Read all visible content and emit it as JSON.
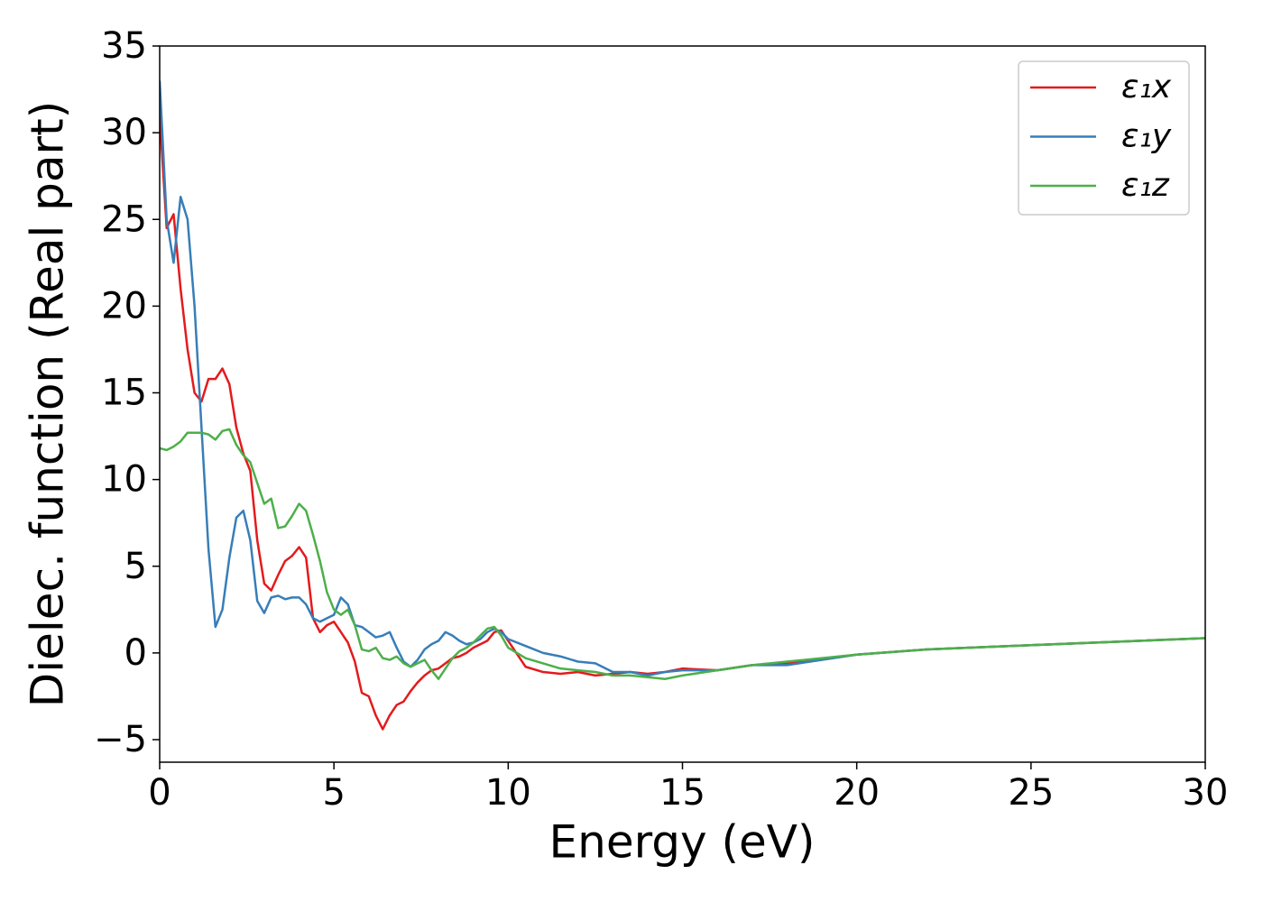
{
  "chart_data": {
    "type": "line",
    "xlabel": "Energy (eV)",
    "ylabel": "Dielec. function (Real part)",
    "x": [
      0,
      0.2,
      0.4,
      0.6,
      0.8,
      1.0,
      1.2,
      1.4,
      1.6,
      1.8,
      2.0,
      2.2,
      2.4,
      2.6,
      2.8,
      3.0,
      3.2,
      3.4,
      3.6,
      3.8,
      4.0,
      4.2,
      4.4,
      4.6,
      4.8,
      5.0,
      5.2,
      5.4,
      5.6,
      5.8,
      6.0,
      6.2,
      6.4,
      6.6,
      6.8,
      7.0,
      7.2,
      7.4,
      7.6,
      7.8,
      8.0,
      8.2,
      8.4,
      8.6,
      8.8,
      9.0,
      9.2,
      9.4,
      9.6,
      9.8,
      10.0,
      10.5,
      11,
      11.5,
      12,
      12.5,
      13,
      13.5,
      14,
      14.5,
      15,
      16,
      17,
      18,
      20,
      22,
      25,
      30
    ],
    "series": [
      {
        "name": "ε₁x",
        "color": "#e41a1c",
        "values": [
          31,
          24.5,
          25.3,
          21,
          17.5,
          15,
          14.5,
          15.8,
          15.8,
          16.4,
          15.5,
          13,
          11.5,
          10.5,
          6.5,
          4,
          3.6,
          4.5,
          5.3,
          5.6,
          6.1,
          5.5,
          2,
          1.2,
          1.6,
          1.8,
          1.2,
          0.6,
          -0.5,
          -2.3,
          -2.5,
          -3.6,
          -4.4,
          -3.6,
          -3.0,
          -2.8,
          -2.2,
          -1.7,
          -1.3,
          -1,
          -0.9,
          -0.6,
          -0.3,
          -0.2,
          0,
          0.3,
          0.5,
          0.7,
          1.2,
          1.3,
          0.7,
          -0.8,
          -1.1,
          -1.2,
          -1.1,
          -1.3,
          -1.2,
          -1.1,
          -1.2,
          -1.1,
          -0.9,
          -1.0,
          -0.7,
          -0.6,
          -0.1,
          0.2,
          0.45,
          0.85
        ]
      },
      {
        "name": "ε₁y",
        "color": "#377eb8",
        "values": [
          33,
          25,
          22.5,
          26.3,
          25,
          20,
          13,
          6,
          1.5,
          2.5,
          5.5,
          7.8,
          8.2,
          6.5,
          3,
          2.3,
          3.2,
          3.3,
          3.1,
          3.2,
          3.2,
          2.8,
          2,
          1.8,
          2,
          2.2,
          3.2,
          2.8,
          1.6,
          1.5,
          1.2,
          0.9,
          1.0,
          1.2,
          0.3,
          -0.5,
          -0.8,
          -0.4,
          0.2,
          0.5,
          0.7,
          1.2,
          1.0,
          0.7,
          0.5,
          0.6,
          0.8,
          1.2,
          1.4,
          1.2,
          0.8,
          0.4,
          0,
          -0.2,
          -0.5,
          -0.6,
          -1.1,
          -1.1,
          -1.3,
          -1.1,
          -1.0,
          -1.0,
          -0.7,
          -0.7,
          -0.1,
          0.2,
          0.45,
          0.85
        ]
      },
      {
        "name": "ε₁z",
        "color": "#4daf4a",
        "values": [
          11.8,
          11.7,
          11.9,
          12.2,
          12.7,
          12.7,
          12.7,
          12.6,
          12.3,
          12.8,
          12.9,
          12,
          11.4,
          11,
          9.8,
          8.6,
          8.9,
          7.2,
          7.3,
          7.9,
          8.6,
          8.2,
          6.8,
          5.3,
          3.5,
          2.5,
          2.2,
          2.5,
          1.6,
          0.2,
          0.1,
          0.3,
          -0.3,
          -0.4,
          -0.2,
          -0.6,
          -0.8,
          -0.6,
          -0.4,
          -1.0,
          -1.5,
          -0.9,
          -0.3,
          0.1,
          0.3,
          0.6,
          1.0,
          1.4,
          1.5,
          1.0,
          0.3,
          -0.3,
          -0.6,
          -0.9,
          -1.0,
          -1.1,
          -1.3,
          -1.3,
          -1.4,
          -1.5,
          -1.3,
          -1.0,
          -0.7,
          -0.5,
          -0.1,
          0.2,
          0.45,
          0.85
        ]
      }
    ],
    "xlim": [
      0,
      30
    ],
    "xticks": [
      0,
      5,
      10,
      15,
      20,
      25,
      30
    ],
    "ylim": [
      -6.3,
      35
    ],
    "yticks": [
      {
        "value": -5,
        "label": "−5"
      },
      0,
      5,
      10,
      15,
      20,
      25,
      30,
      35
    ],
    "legend": "upper right"
  }
}
